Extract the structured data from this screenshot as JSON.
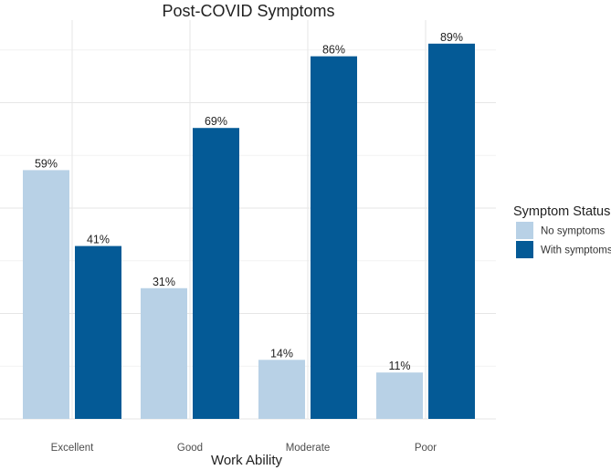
{
  "chart_data": {
    "type": "bar",
    "title": "Post-COVID Symptoms",
    "xlabel": "Work Ability",
    "ylabel": "",
    "ylim": [
      0,
      100
    ],
    "categories": [
      "Excellent",
      "Good",
      "Moderate",
      "Poor"
    ],
    "series": [
      {
        "name": "No symptoms",
        "values": [
          59,
          31,
          14,
          11
        ],
        "labels": [
          "59%",
          "31%",
          "14%",
          "11%"
        ],
        "color": "#b8d1e6"
      },
      {
        "name": "With symptoms",
        "values": [
          41,
          69,
          86,
          89
        ],
        "labels": [
          "41%",
          "69%",
          "86%",
          "89%"
        ],
        "color": "#045a96"
      }
    ],
    "legend": {
      "title": "Symptom Status",
      "position": "right"
    },
    "grid": true
  }
}
